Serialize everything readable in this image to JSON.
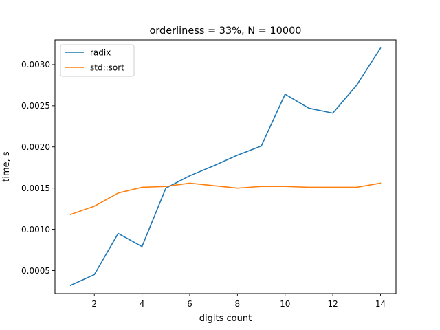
{
  "chart_data": {
    "type": "line",
    "title": "orderliness = 33%, N = 10000",
    "xlabel": "digits count",
    "ylabel": "time, s",
    "x": [
      1,
      2,
      3,
      4,
      5,
      6,
      7,
      8,
      9,
      10,
      11,
      12,
      13,
      14
    ],
    "xlim": [
      0.35,
      14.65
    ],
    "ylim": [
      0.00022,
      0.0033
    ],
    "xticks": [
      2,
      4,
      6,
      8,
      10,
      12,
      14
    ],
    "xtick_labels": [
      "2",
      "4",
      "6",
      "8",
      "10",
      "12",
      "14"
    ],
    "yticks": [
      0.0005,
      0.001,
      0.0015,
      0.002,
      0.0025,
      0.003
    ],
    "ytick_labels": [
      "0.0005",
      "0.0010",
      "0.0015",
      "0.0020",
      "0.0025",
      "0.0030"
    ],
    "grid": false,
    "legend_position": "top-left",
    "series": [
      {
        "name": "radix",
        "color": "#1f77b4",
        "values": [
          0.00032,
          0.00045,
          0.00095,
          0.00079,
          0.0015,
          0.00165,
          0.00177,
          0.0019,
          0.00201,
          0.00264,
          0.00247,
          0.00241,
          0.00275,
          0.0032
        ]
      },
      {
        "name": "std::sort",
        "color": "#ff7f0e",
        "values": [
          0.00118,
          0.00128,
          0.00144,
          0.00151,
          0.00152,
          0.00156,
          0.00153,
          0.0015,
          0.00152,
          0.00152,
          0.00151,
          0.00151,
          0.00151,
          0.00156
        ]
      }
    ]
  }
}
